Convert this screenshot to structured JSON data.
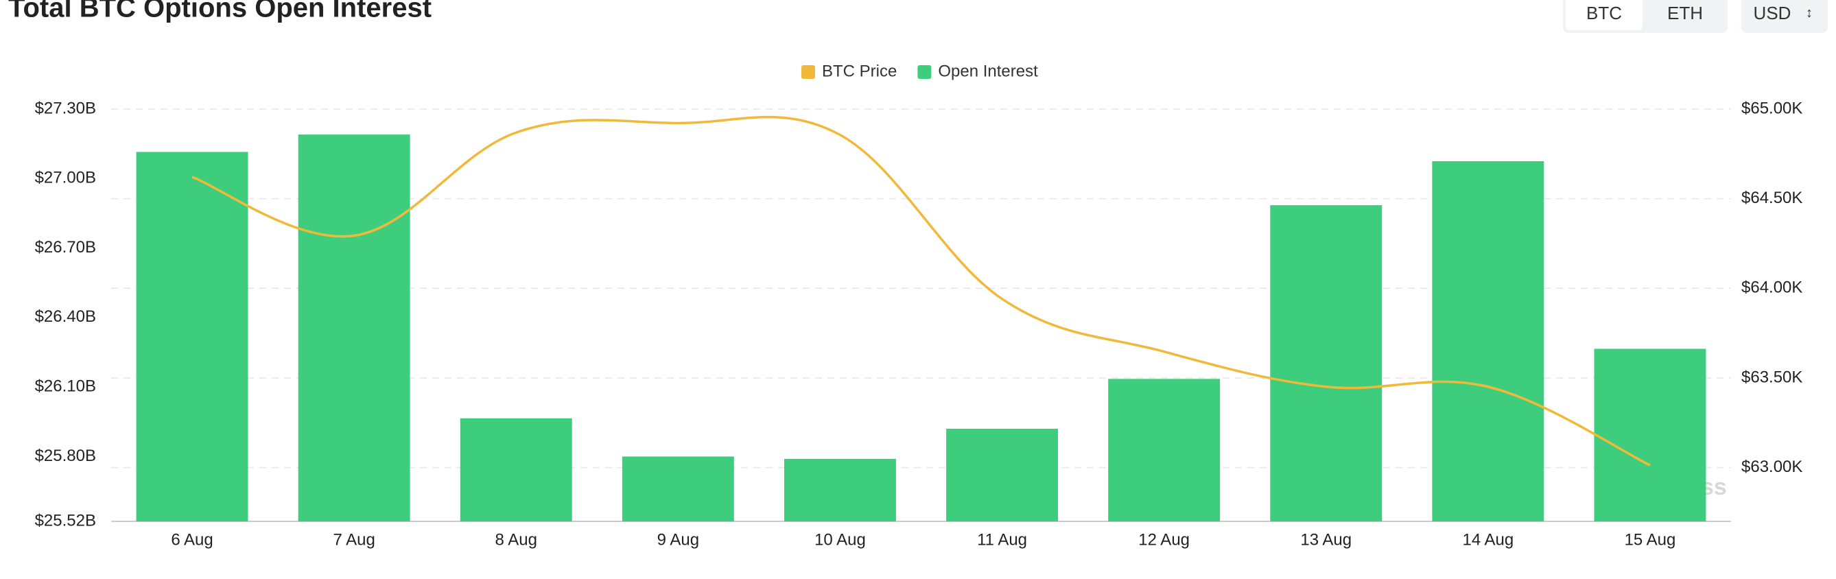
{
  "chart_data": {
    "type": "bar",
    "title": "Total BTC Options Open Interest",
    "categories": [
      "6 Aug",
      "7 Aug",
      "8 Aug",
      "9 Aug",
      "10 Aug",
      "11 Aug",
      "12 Aug",
      "13 Aug",
      "14 Aug",
      "15 Aug"
    ],
    "series": [
      {
        "name": "BTC Price",
        "type": "line",
        "color": "#f0b93a",
        "axis": "y2",
        "values": [
          64621,
          64294,
          64869,
          64922,
          64856,
          63941,
          63647,
          63451,
          63451,
          63013
        ]
      },
      {
        "name": "Open Interest",
        "type": "bar",
        "color": "#3ecd7c",
        "values": [
          27.115,
          27.19,
          25.965,
          25.8,
          25.79,
          25.92,
          26.135,
          26.885,
          27.075,
          26.265
        ]
      }
    ],
    "ylim": [
      25.52,
      27.3
    ],
    "yticks": [
      {
        "value": 25.52,
        "label": "$25.52B"
      },
      {
        "value": 25.8,
        "label": "$25.80B"
      },
      {
        "value": 26.1,
        "label": "$26.10B"
      },
      {
        "value": 26.4,
        "label": "$26.40B"
      },
      {
        "value": 26.7,
        "label": "$26.70B"
      },
      {
        "value": 27.0,
        "label": "$27.00B"
      },
      {
        "value": 27.3,
        "label": "$27.30B"
      }
    ],
    "y2lim": [
      62700,
      65000
    ],
    "y2ticks": [
      {
        "value": 63000,
        "label": "$63.00K"
      },
      {
        "value": 63500,
        "label": "$63.50K"
      },
      {
        "value": 64000,
        "label": "$64.00K"
      },
      {
        "value": 64500,
        "label": "$64.50K"
      },
      {
        "value": 65000,
        "label": "$65.00K"
      }
    ],
    "grid": true,
    "legend": "top",
    "watermark": "coinglass"
  },
  "controls": {
    "asset_tabs": [
      "BTC",
      "ETH"
    ],
    "currency": "USD"
  }
}
